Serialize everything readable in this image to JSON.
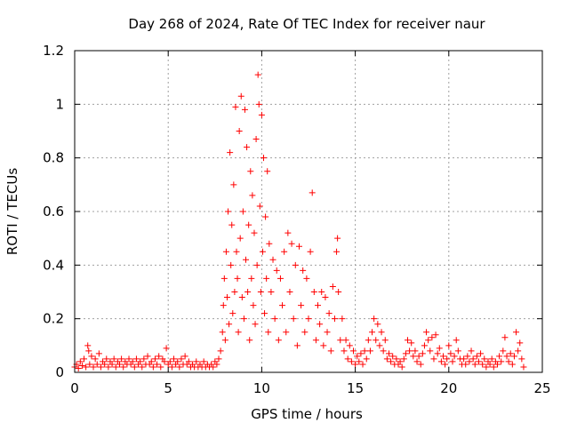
{
  "chart_data": {
    "type": "scatter",
    "title": "Day 268 of 2024, Rate Of TEC Index for receiver naur",
    "xlabel": "GPS time / hours",
    "ylabel": "ROTI / TECUs",
    "xlim": [
      0,
      25
    ],
    "ylim": [
      0,
      1.2
    ],
    "xticks": [
      "0",
      "5",
      "10",
      "15",
      "20",
      "25"
    ],
    "yticks": [
      "0",
      "0.2",
      "0.4",
      "0.6",
      "0.8",
      "1",
      "1.2"
    ],
    "xtick_values": [
      0,
      5,
      10,
      15,
      20,
      25
    ],
    "ytick_values": [
      0,
      0.2,
      0.4,
      0.6,
      0.8,
      1.0,
      1.2
    ],
    "grid": true,
    "marker": "+",
    "series": [
      {
        "color": "#ff0000",
        "points": [
          [
            0.0,
            0.02
          ],
          [
            0.1,
            0.03
          ],
          [
            0.2,
            0.015
          ],
          [
            0.3,
            0.04
          ],
          [
            0.4,
            0.025
          ],
          [
            0.5,
            0.05
          ],
          [
            0.6,
            0.02
          ],
          [
            0.7,
            0.1
          ],
          [
            0.75,
            0.08
          ],
          [
            0.8,
            0.03
          ],
          [
            0.9,
            0.06
          ],
          [
            1.0,
            0.02
          ],
          [
            1.1,
            0.05
          ],
          [
            1.2,
            0.03
          ],
          [
            1.3,
            0.07
          ],
          [
            1.4,
            0.02
          ],
          [
            1.5,
            0.04
          ],
          [
            1.6,
            0.03
          ],
          [
            1.7,
            0.05
          ],
          [
            1.8,
            0.02
          ],
          [
            1.9,
            0.04
          ],
          [
            2.0,
            0.03
          ],
          [
            2.1,
            0.05
          ],
          [
            2.2,
            0.02
          ],
          [
            2.3,
            0.04
          ],
          [
            2.4,
            0.03
          ],
          [
            2.5,
            0.05
          ],
          [
            2.6,
            0.02
          ],
          [
            2.7,
            0.04
          ],
          [
            2.8,
            0.03
          ],
          [
            2.9,
            0.05
          ],
          [
            3.0,
            0.03
          ],
          [
            3.1,
            0.04
          ],
          [
            3.2,
            0.02
          ],
          [
            3.3,
            0.05
          ],
          [
            3.4,
            0.03
          ],
          [
            3.5,
            0.04
          ],
          [
            3.6,
            0.02
          ],
          [
            3.7,
            0.05
          ],
          [
            3.8,
            0.03
          ],
          [
            3.9,
            0.06
          ],
          [
            4.0,
            0.03
          ],
          [
            4.1,
            0.04
          ],
          [
            4.2,
            0.02
          ],
          [
            4.3,
            0.05
          ],
          [
            4.4,
            0.03
          ],
          [
            4.5,
            0.06
          ],
          [
            4.6,
            0.02
          ],
          [
            4.7,
            0.05
          ],
          [
            4.8,
            0.04
          ],
          [
            4.9,
            0.09
          ],
          [
            5.0,
            0.03
          ],
          [
            5.1,
            0.04
          ],
          [
            5.2,
            0.02
          ],
          [
            5.3,
            0.05
          ],
          [
            5.4,
            0.03
          ],
          [
            5.5,
            0.04
          ],
          [
            5.6,
            0.02
          ],
          [
            5.7,
            0.05
          ],
          [
            5.8,
            0.03
          ],
          [
            5.9,
            0.06
          ],
          [
            6.0,
            0.03
          ],
          [
            6.1,
            0.04
          ],
          [
            6.2,
            0.02
          ],
          [
            6.3,
            0.03
          ],
          [
            6.4,
            0.02
          ],
          [
            6.5,
            0.04
          ],
          [
            6.6,
            0.02
          ],
          [
            6.7,
            0.03
          ],
          [
            6.8,
            0.02
          ],
          [
            6.9,
            0.04
          ],
          [
            7.0,
            0.02
          ],
          [
            7.1,
            0.03
          ],
          [
            7.2,
            0.02
          ],
          [
            7.3,
            0.03
          ],
          [
            7.4,
            0.02
          ],
          [
            7.5,
            0.04
          ],
          [
            7.6,
            0.03
          ],
          [
            7.7,
            0.05
          ],
          [
            7.8,
            0.08
          ],
          [
            7.9,
            0.15
          ],
          [
            7.95,
            0.25
          ],
          [
            8.0,
            0.35
          ],
          [
            8.05,
            0.12
          ],
          [
            8.1,
            0.45
          ],
          [
            8.15,
            0.28
          ],
          [
            8.2,
            0.6
          ],
          [
            8.25,
            0.18
          ],
          [
            8.3,
            0.82
          ],
          [
            8.35,
            0.4
          ],
          [
            8.4,
            0.55
          ],
          [
            8.45,
            0.22
          ],
          [
            8.5,
            0.7
          ],
          [
            8.55,
            0.3
          ],
          [
            8.6,
            0.99
          ],
          [
            8.65,
            0.45
          ],
          [
            8.7,
            0.35
          ],
          [
            8.75,
            0.15
          ],
          [
            8.8,
            0.9
          ],
          [
            8.85,
            0.5
          ],
          [
            8.9,
            1.03
          ],
          [
            8.95,
            0.28
          ],
          [
            9.0,
            0.6
          ],
          [
            9.05,
            0.2
          ],
          [
            9.1,
            0.98
          ],
          [
            9.15,
            0.42
          ],
          [
            9.2,
            0.84
          ],
          [
            9.25,
            0.3
          ],
          [
            9.3,
            0.55
          ],
          [
            9.35,
            0.12
          ],
          [
            9.4,
            0.75
          ],
          [
            9.45,
            0.35
          ],
          [
            9.5,
            0.66
          ],
          [
            9.55,
            0.25
          ],
          [
            9.6,
            0.52
          ],
          [
            9.65,
            0.18
          ],
          [
            9.7,
            0.87
          ],
          [
            9.75,
            0.4
          ],
          [
            9.8,
            1.11
          ],
          [
            9.85,
            1.0
          ],
          [
            9.9,
            0.62
          ],
          [
            9.95,
            0.3
          ],
          [
            10.0,
            0.96
          ],
          [
            10.05,
            0.45
          ],
          [
            10.1,
            0.8
          ],
          [
            10.15,
            0.22
          ],
          [
            10.2,
            0.58
          ],
          [
            10.25,
            0.35
          ],
          [
            10.3,
            0.75
          ],
          [
            10.35,
            0.15
          ],
          [
            10.4,
            0.48
          ],
          [
            10.5,
            0.3
          ],
          [
            10.6,
            0.42
          ],
          [
            10.7,
            0.2
          ],
          [
            10.8,
            0.38
          ],
          [
            10.9,
            0.12
          ],
          [
            11.0,
            0.35
          ],
          [
            11.1,
            0.25
          ],
          [
            11.2,
            0.45
          ],
          [
            11.3,
            0.15
          ],
          [
            11.4,
            0.52
          ],
          [
            11.5,
            0.3
          ],
          [
            11.6,
            0.48
          ],
          [
            11.7,
            0.2
          ],
          [
            11.8,
            0.4
          ],
          [
            11.9,
            0.1
          ],
          [
            12.0,
            0.47
          ],
          [
            12.1,
            0.25
          ],
          [
            12.2,
            0.38
          ],
          [
            12.3,
            0.15
          ],
          [
            12.4,
            0.35
          ],
          [
            12.5,
            0.2
          ],
          [
            12.6,
            0.45
          ],
          [
            12.7,
            0.67
          ],
          [
            12.8,
            0.3
          ],
          [
            12.9,
            0.12
          ],
          [
            13.0,
            0.25
          ],
          [
            13.1,
            0.18
          ],
          [
            13.2,
            0.3
          ],
          [
            13.3,
            0.1
          ],
          [
            13.4,
            0.28
          ],
          [
            13.5,
            0.15
          ],
          [
            13.6,
            0.22
          ],
          [
            13.7,
            0.08
          ],
          [
            13.8,
            0.32
          ],
          [
            13.9,
            0.2
          ],
          [
            14.0,
            0.45
          ],
          [
            14.05,
            0.5
          ],
          [
            14.1,
            0.3
          ],
          [
            14.2,
            0.12
          ],
          [
            14.3,
            0.2
          ],
          [
            14.4,
            0.08
          ],
          [
            14.5,
            0.12
          ],
          [
            14.6,
            0.05
          ],
          [
            14.7,
            0.1
          ],
          [
            14.8,
            0.04
          ],
          [
            14.9,
            0.08
          ],
          [
            15.0,
            0.03
          ],
          [
            15.1,
            0.06
          ],
          [
            15.2,
            0.04
          ],
          [
            15.3,
            0.07
          ],
          [
            15.4,
            0.03
          ],
          [
            15.5,
            0.08
          ],
          [
            15.6,
            0.05
          ],
          [
            15.7,
            0.12
          ],
          [
            15.8,
            0.08
          ],
          [
            15.9,
            0.15
          ],
          [
            16.0,
            0.2
          ],
          [
            16.1,
            0.12
          ],
          [
            16.2,
            0.18
          ],
          [
            16.3,
            0.1
          ],
          [
            16.4,
            0.15
          ],
          [
            16.5,
            0.08
          ],
          [
            16.6,
            0.12
          ],
          [
            16.7,
            0.05
          ],
          [
            16.8,
            0.07
          ],
          [
            16.9,
            0.04
          ],
          [
            17.0,
            0.06
          ],
          [
            17.1,
            0.03
          ],
          [
            17.2,
            0.05
          ],
          [
            17.3,
            0.03
          ],
          [
            17.4,
            0.04
          ],
          [
            17.5,
            0.02
          ],
          [
            17.6,
            0.05
          ],
          [
            17.7,
            0.07
          ],
          [
            17.8,
            0.12
          ],
          [
            17.9,
            0.08
          ],
          [
            18.0,
            0.11
          ],
          [
            18.1,
            0.06
          ],
          [
            18.2,
            0.08
          ],
          [
            18.3,
            0.04
          ],
          [
            18.4,
            0.06
          ],
          [
            18.5,
            0.03
          ],
          [
            18.6,
            0.07
          ],
          [
            18.7,
            0.1
          ],
          [
            18.8,
            0.15
          ],
          [
            18.9,
            0.12
          ],
          [
            19.0,
            0.08
          ],
          [
            19.1,
            0.13
          ],
          [
            19.2,
            0.05
          ],
          [
            19.3,
            0.14
          ],
          [
            19.4,
            0.07
          ],
          [
            19.5,
            0.09
          ],
          [
            19.6,
            0.04
          ],
          [
            19.7,
            0.06
          ],
          [
            19.8,
            0.03
          ],
          [
            19.9,
            0.05
          ],
          [
            20.0,
            0.1
          ],
          [
            20.1,
            0.07
          ],
          [
            20.2,
            0.04
          ],
          [
            20.3,
            0.06
          ],
          [
            20.4,
            0.12
          ],
          [
            20.5,
            0.08
          ],
          [
            20.6,
            0.05
          ],
          [
            20.7,
            0.03
          ],
          [
            20.8,
            0.05
          ],
          [
            20.9,
            0.03
          ],
          [
            21.0,
            0.06
          ],
          [
            21.1,
            0.04
          ],
          [
            21.2,
            0.08
          ],
          [
            21.3,
            0.05
          ],
          [
            21.4,
            0.03
          ],
          [
            21.5,
            0.06
          ],
          [
            21.6,
            0.04
          ],
          [
            21.7,
            0.07
          ],
          [
            21.8,
            0.03
          ],
          [
            21.9,
            0.05
          ],
          [
            22.0,
            0.02
          ],
          [
            22.1,
            0.04
          ],
          [
            22.2,
            0.03
          ],
          [
            22.3,
            0.05
          ],
          [
            22.4,
            0.02
          ],
          [
            22.5,
            0.04
          ],
          [
            22.6,
            0.03
          ],
          [
            22.7,
            0.06
          ],
          [
            22.8,
            0.04
          ],
          [
            22.9,
            0.08
          ],
          [
            23.0,
            0.13
          ],
          [
            23.1,
            0.06
          ],
          [
            23.2,
            0.04
          ],
          [
            23.3,
            0.07
          ],
          [
            23.4,
            0.03
          ],
          [
            23.5,
            0.06
          ],
          [
            23.6,
            0.15
          ],
          [
            23.7,
            0.08
          ],
          [
            23.8,
            0.11
          ],
          [
            23.9,
            0.05
          ],
          [
            24.0,
            0.02
          ]
        ]
      }
    ]
  }
}
